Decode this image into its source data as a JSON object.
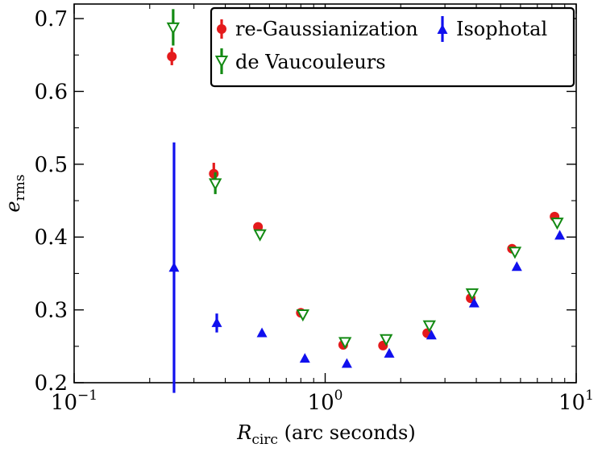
{
  "chart_data": {
    "type": "scatter",
    "title": "",
    "xscale": "log",
    "xlim": [
      0.1,
      10
    ],
    "ylim": [
      0.2,
      0.72
    ],
    "xlabel": {
      "symbol": "R",
      "subscript": "circ",
      "rest": " (arc seconds)"
    },
    "ylabel": {
      "symbol": "e",
      "subscript": "rms"
    },
    "x_ticks": [
      {
        "value": 0.1,
        "base": "10",
        "exp": "−1"
      },
      {
        "value": 1,
        "base": "10",
        "exp": "0"
      },
      {
        "value": 10,
        "base": "10",
        "exp": "1"
      }
    ],
    "y_ticks": [
      {
        "value": 0.2,
        "label": "0.2"
      },
      {
        "value": 0.3,
        "label": "0.3"
      },
      {
        "value": 0.4,
        "label": "0.4"
      },
      {
        "value": 0.5,
        "label": "0.5"
      },
      {
        "value": 0.6,
        "label": "0.6"
      },
      {
        "value": 0.7,
        "label": "0.7"
      }
    ],
    "legend_location": "top-right",
    "series": [
      {
        "name": "re-Gaussianization",
        "marker": "circle",
        "color": "#e41a1c",
        "points": [
          {
            "x": 0.245,
            "y": 0.648,
            "err": 0.012
          },
          {
            "x": 0.36,
            "y": 0.487,
            "err": 0.015
          },
          {
            "x": 0.54,
            "y": 0.414,
            "err": 0
          },
          {
            "x": 0.8,
            "y": 0.296,
            "err": 0
          },
          {
            "x": 1.18,
            "y": 0.252,
            "err": 0
          },
          {
            "x": 1.7,
            "y": 0.251,
            "err": 0
          },
          {
            "x": 2.55,
            "y": 0.268,
            "err": 0
          },
          {
            "x": 3.8,
            "y": 0.316,
            "err": 0
          },
          {
            "x": 5.55,
            "y": 0.384,
            "err": 0
          },
          {
            "x": 8.2,
            "y": 0.428,
            "err": 0
          }
        ]
      },
      {
        "name": "de Vaucouleurs",
        "marker": "triangle-down-open",
        "color": "#138a13",
        "points": [
          {
            "x": 0.248,
            "y": 0.688,
            "err": 0.025
          },
          {
            "x": 0.365,
            "y": 0.474,
            "err": 0.015
          },
          {
            "x": 0.55,
            "y": 0.404,
            "err": 0
          },
          {
            "x": 0.815,
            "y": 0.294,
            "err": 0
          },
          {
            "x": 1.2,
            "y": 0.256,
            "err": 0
          },
          {
            "x": 1.75,
            "y": 0.26,
            "err": 0
          },
          {
            "x": 2.6,
            "y": 0.279,
            "err": 0
          },
          {
            "x": 3.85,
            "y": 0.323,
            "err": 0
          },
          {
            "x": 5.7,
            "y": 0.38,
            "err": 0
          },
          {
            "x": 8.4,
            "y": 0.42,
            "err": 0
          }
        ]
      },
      {
        "name": "Isophotal",
        "marker": "triangle-up",
        "color": "#1010ee",
        "points": [
          {
            "x": 0.25,
            "y": 0.358,
            "err": 0.172
          },
          {
            "x": 0.37,
            "y": 0.282,
            "err": 0.013
          },
          {
            "x": 0.56,
            "y": 0.268,
            "err": 0
          },
          {
            "x": 0.83,
            "y": 0.233,
            "err": 0
          },
          {
            "x": 1.22,
            "y": 0.226,
            "err": 0
          },
          {
            "x": 1.8,
            "y": 0.24,
            "err": 0
          },
          {
            "x": 2.65,
            "y": 0.265,
            "err": 0
          },
          {
            "x": 3.92,
            "y": 0.309,
            "err": 0
          },
          {
            "x": 5.8,
            "y": 0.359,
            "err": 0
          },
          {
            "x": 8.6,
            "y": 0.402,
            "err": 0
          }
        ]
      }
    ]
  }
}
